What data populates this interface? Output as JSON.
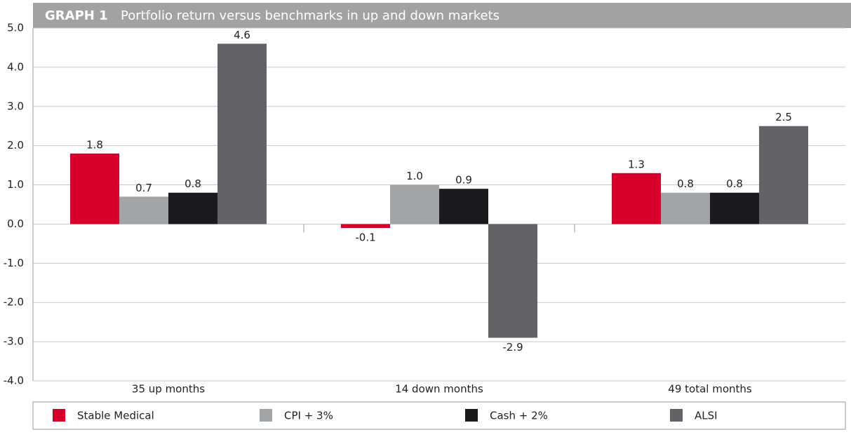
{
  "chart_data": {
    "type": "bar",
    "title_label": "GRAPH 1",
    "title": "Portfolio return versus benchmarks in up and down markets",
    "categories": [
      "35 up months",
      "14 down months",
      "49 total months"
    ],
    "series": [
      {
        "name": "Stable Medical",
        "color": "#d7002b",
        "values": [
          1.8,
          -0.1,
          1.3
        ],
        "value_labels": [
          "1.8",
          "-0.1",
          "1.3"
        ]
      },
      {
        "name": "CPI + 3%",
        "color": "#a2a5a8",
        "values": [
          0.7,
          1.0,
          0.8
        ],
        "value_labels": [
          "0.7",
          "1.0",
          "0.8"
        ]
      },
      {
        "name": "Cash + 2%",
        "color": "#1d1a1f",
        "values": [
          0.8,
          0.9,
          0.8
        ],
        "value_labels": [
          "0.8",
          "0.9",
          "0.8"
        ]
      },
      {
        "name": "ALSI",
        "color": "#626366",
        "values": [
          4.6,
          -2.9,
          2.5
        ],
        "value_labels": [
          "4.6",
          "-2.9",
          "2.5"
        ]
      }
    ],
    "ylim": [
      -4,
      5
    ],
    "yticks": [
      {
        "value": 5,
        "label": "5.0"
      },
      {
        "value": 4,
        "label": "4.0"
      },
      {
        "value": 3,
        "label": "3.0"
      },
      {
        "value": 2,
        "label": "2.0"
      },
      {
        "value": 1,
        "label": "1.0"
      },
      {
        "value": 0,
        "label": "0.0"
      },
      {
        "value": -1,
        "label": "-1.0"
      },
      {
        "value": -2,
        "label": "-2.0"
      },
      {
        "value": -3,
        "label": "-3.0"
      },
      {
        "value": -4,
        "label": "-4.0"
      }
    ],
    "grid": true
  }
}
